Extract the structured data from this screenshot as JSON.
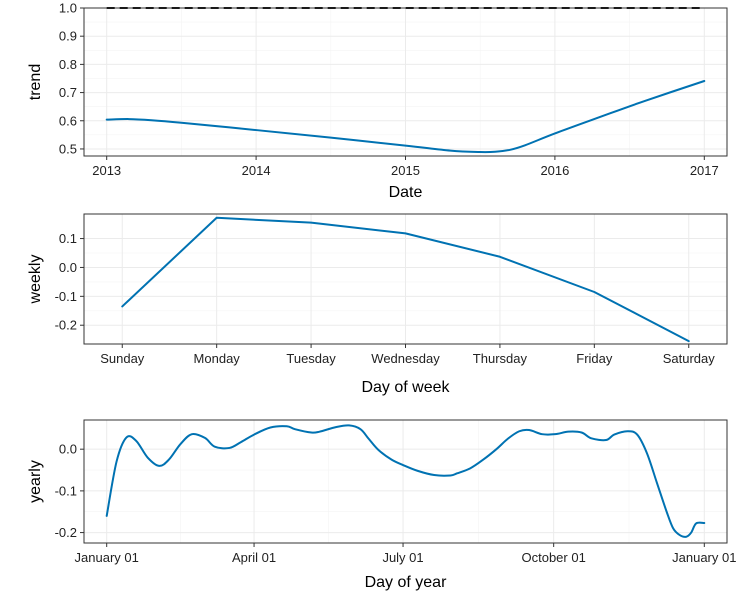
{
  "colors": {
    "series": "#0072b2",
    "cap": "#000000",
    "grid": "#ebebeb",
    "border": "#333333"
  },
  "chart_data": [
    {
      "id": "trend",
      "type": "line",
      "title": "",
      "xlabel": "Date",
      "ylabel": "trend",
      "xlim": [
        2013,
        2017
      ],
      "ylim": [
        0.475,
        1.0
      ],
      "x_ticks": [
        2013,
        2014,
        2015,
        2016,
        2017
      ],
      "x_tick_labels": [
        "2013",
        "2014",
        "2015",
        "2016",
        "2017"
      ],
      "y_ticks": [
        0.5,
        0.6,
        0.7,
        0.8,
        0.9,
        1.0
      ],
      "y_tick_labels": [
        "0.5",
        "0.6",
        "0.7",
        "0.8",
        "0.9",
        "1.0"
      ],
      "series": [
        {
          "name": "trend",
          "x": [
            2013.0,
            2013.15,
            2013.3,
            2013.5,
            2014.0,
            2014.5,
            2015.0,
            2015.3,
            2015.5,
            2015.6,
            2015.7,
            2015.8,
            2016.0,
            2016.3,
            2016.6,
            2017.0
          ],
          "values": [
            0.604,
            0.606,
            0.602,
            0.593,
            0.567,
            0.54,
            0.512,
            0.494,
            0.489,
            0.49,
            0.497,
            0.513,
            0.555,
            0.613,
            0.67,
            0.741
          ]
        }
      ],
      "cap": {
        "name": "cap",
        "value": 1.0,
        "style": "dashed"
      }
    },
    {
      "id": "weekly",
      "type": "line",
      "title": "",
      "xlabel": "Day of week",
      "ylabel": "weekly",
      "categories": [
        "Sunday",
        "Monday",
        "Tuesday",
        "Wednesday",
        "Thursday",
        "Friday",
        "Saturday"
      ],
      "ylim": [
        -0.265,
        0.185
      ],
      "y_ticks": [
        -0.2,
        -0.1,
        0.0,
        0.1
      ],
      "y_tick_labels": [
        "-0.2",
        "-0.1",
        "0.0",
        "0.1"
      ],
      "series": [
        {
          "name": "weekly",
          "values": [
            -0.135,
            0.172,
            0.155,
            0.118,
            0.037,
            -0.085,
            -0.255
          ]
        }
      ]
    },
    {
      "id": "yearly",
      "type": "line",
      "title": "",
      "xlabel": "Day of year",
      "ylabel": "yearly",
      "xlim": [
        0,
        365
      ],
      "ylim": [
        -0.225,
        0.07
      ],
      "x_ticks": [
        0,
        90,
        181,
        273,
        365
      ],
      "x_tick_labels": [
        "January 01",
        "April 01",
        "July 01",
        "October 01",
        "January 01"
      ],
      "y_ticks": [
        -0.2,
        -0.1,
        0.0
      ],
      "y_tick_labels": [
        "-0.2",
        "-0.1",
        "0.0"
      ],
      "series": [
        {
          "name": "yearly",
          "x": [
            0,
            6,
            12,
            18,
            25,
            32,
            38,
            45,
            52,
            60,
            66,
            75,
            82,
            90,
            100,
            110,
            115,
            125,
            130,
            140,
            148,
            155,
            160,
            166,
            174,
            181,
            190,
            200,
            210,
            214,
            222,
            230,
            238,
            245,
            252,
            258,
            266,
            274,
            282,
            290,
            296,
            305,
            310,
            318,
            324,
            330,
            336,
            342,
            346,
            350,
            354,
            357,
            360,
            365
          ],
          "values": [
            -0.16,
            -0.03,
            0.028,
            0.02,
            -0.02,
            -0.04,
            -0.025,
            0.012,
            0.036,
            0.027,
            0.006,
            0.003,
            0.017,
            0.035,
            0.052,
            0.055,
            0.048,
            0.04,
            0.042,
            0.053,
            0.057,
            0.048,
            0.025,
            -0.002,
            -0.025,
            -0.038,
            -0.052,
            -0.062,
            -0.063,
            -0.058,
            -0.046,
            -0.025,
            0.0,
            0.025,
            0.043,
            0.046,
            0.036,
            0.036,
            0.042,
            0.04,
            0.026,
            0.022,
            0.035,
            0.043,
            0.035,
            -0.01,
            -0.08,
            -0.15,
            -0.19,
            -0.206,
            -0.21,
            -0.2,
            -0.178,
            -0.177
          ]
        }
      ]
    }
  ]
}
